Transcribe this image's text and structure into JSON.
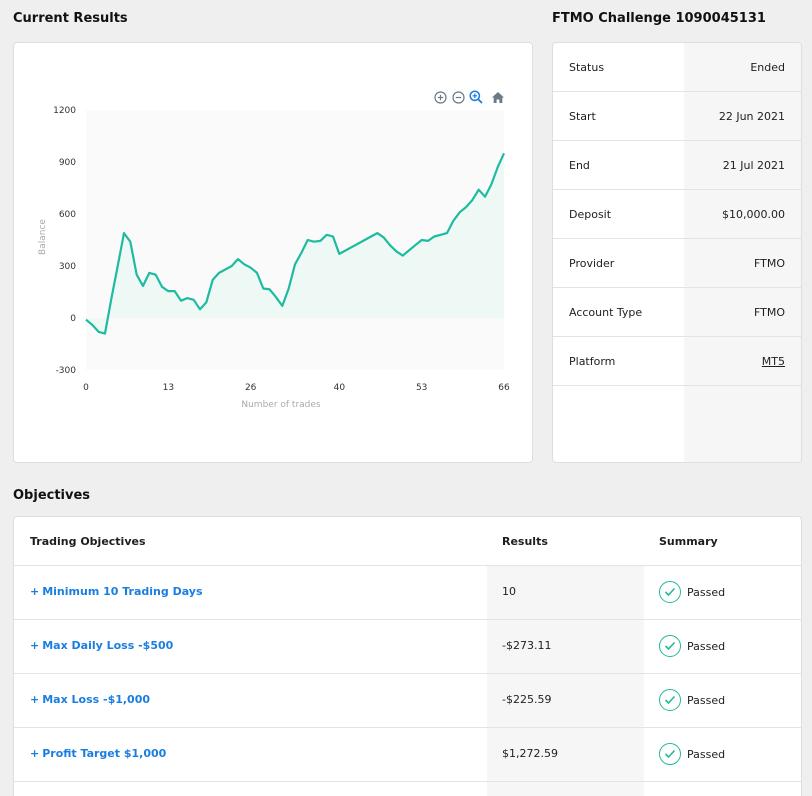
{
  "sections": {
    "current_results_title": "Current Results",
    "account_title": "FTMO Challenge 1090045131",
    "objectives_title": "Objectives"
  },
  "chart_toolbar": [
    "zoom-in-icon",
    "zoom-out-icon",
    "zoom-select-icon",
    "home-icon"
  ],
  "chart_data": {
    "type": "area",
    "xlabel": "Number of trades",
    "ylabel": "Balance",
    "xlim": [
      0,
      66
    ],
    "ylim": [
      -300,
      1200
    ],
    "x_ticks": [
      "0",
      "13",
      "26",
      "40",
      "53",
      "66"
    ],
    "y_ticks": [
      "1200",
      "900",
      "600",
      "300",
      "0",
      "-300"
    ],
    "line_color": "#1fbba0",
    "fill_color": "#eef8f5",
    "series": [
      {
        "x": [
          0,
          1,
          2,
          3,
          4,
          5,
          6,
          7,
          8,
          9,
          10,
          11,
          12,
          13,
          14,
          15,
          16,
          17,
          18,
          19,
          20,
          21,
          22,
          23,
          24,
          25,
          26,
          27,
          28,
          29,
          30,
          31,
          32,
          33,
          34,
          35,
          36,
          37,
          38,
          39,
          40,
          41,
          42,
          43,
          44,
          45,
          46,
          47,
          48,
          49,
          50,
          51,
          52,
          53,
          54,
          55,
          56,
          57,
          58,
          59,
          60,
          61,
          62,
          63,
          64,
          65,
          66
        ],
        "values": [
          -10,
          -40,
          -80,
          -90,
          110,
          300,
          490,
          440,
          250,
          185,
          260,
          250,
          180,
          155,
          155,
          100,
          115,
          105,
          50,
          90,
          220,
          260,
          280,
          300,
          340,
          310,
          290,
          260,
          170,
          165,
          120,
          70,
          170,
          310,
          375,
          450,
          440,
          445,
          480,
          470,
          370,
          390,
          410,
          430,
          450,
          470,
          490,
          465,
          420,
          385,
          360,
          390,
          420,
          450,
          445,
          470,
          480,
          490,
          560,
          610,
          640,
          680,
          740,
          700,
          770,
          870,
          950
        ]
      }
    ]
  },
  "account": {
    "rows": [
      {
        "label": "Status",
        "value": "Ended"
      },
      {
        "label": "Start",
        "value": "22 Jun 2021"
      },
      {
        "label": "End",
        "value": "21 Jul 2021"
      },
      {
        "label": "Deposit",
        "value": "$10,000.00"
      },
      {
        "label": "Provider",
        "value": "FTMO"
      },
      {
        "label": "Account Type",
        "value": "FTMO"
      },
      {
        "label": "Platform",
        "value": "MT5"
      }
    ]
  },
  "objectives": {
    "headers": {
      "objective": "Trading Objectives",
      "results": "Results",
      "summary": "Summary"
    },
    "expand_symbol": "+",
    "rows": [
      {
        "name": "Minimum 10 Trading Days",
        "result": "10",
        "status": "Passed"
      },
      {
        "name": "Max Daily Loss -$500",
        "result": "-$273.11",
        "status": "Passed"
      },
      {
        "name": "Max Loss -$1,000",
        "result": "-$225.59",
        "status": "Passed"
      },
      {
        "name": "Profit Target $1,000",
        "result": "$1,272.59",
        "status": "Passed"
      }
    ]
  }
}
